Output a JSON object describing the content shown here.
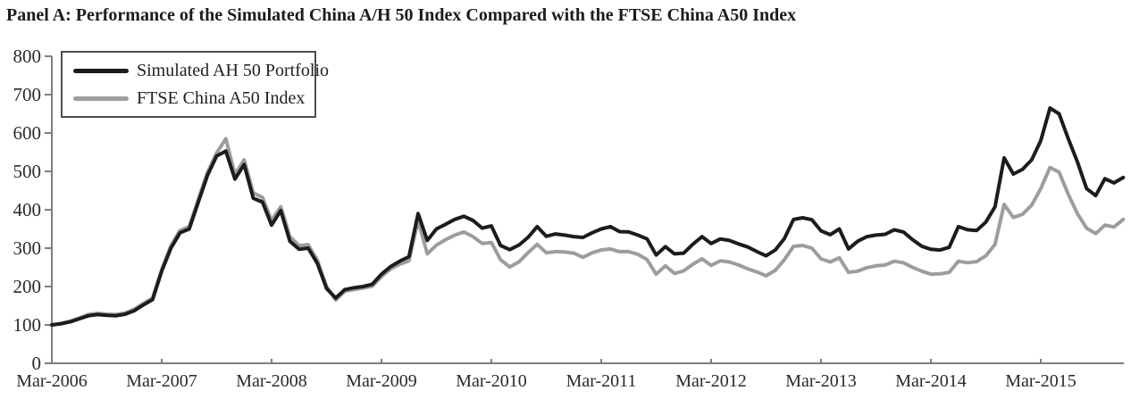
{
  "title": "Panel A: Performance of the Simulated China A/H 50 Index Compared with the FTSE China A50 Index",
  "colors": {
    "series_simulated": "#1c1c1c",
    "series_ftse": "#9d9d9d",
    "axis": "#7f7f7f",
    "text": "#2a2a2a",
    "legend_border": "#4d4d4d",
    "background": "#ffffff"
  },
  "chart_data": {
    "type": "line",
    "title": "Panel A: Performance of the Simulated China A/H 50 Index Compared with the FTSE China A50 Index",
    "x_start": "Mar-2006",
    "x_end": "Dec-2015",
    "x_frequency": "monthly",
    "x_tick_labels": [
      "Mar-2006",
      "Mar-2007",
      "Mar-2008",
      "Mar-2009",
      "Mar-2010",
      "Mar-2011",
      "Mar-2012",
      "Mar-2013",
      "Mar-2014",
      "Mar-2015"
    ],
    "y_ticks": [
      0,
      100,
      200,
      300,
      400,
      500,
      600,
      700,
      800
    ],
    "ylim": [
      0,
      800
    ],
    "base_value": 100,
    "grid": false,
    "legend_position": "top-left",
    "series": [
      {
        "name": "Simulated AH 50 Portfolio",
        "color": "#1c1c1c",
        "values": [
          100,
          103,
          108,
          116,
          124,
          127,
          125,
          124,
          128,
          137,
          152,
          166,
          240,
          300,
          340,
          350,
          420,
          490,
          540,
          553,
          480,
          518,
          430,
          420,
          360,
          398,
          318,
          297,
          300,
          260,
          195,
          170,
          192,
          197,
          200,
          206,
          232,
          252,
          266,
          278,
          390,
          320,
          350,
          362,
          375,
          383,
          372,
          352,
          358,
          307,
          296,
          308,
          328,
          356,
          331,
          337,
          334,
          330,
          328,
          340,
          350,
          356,
          343,
          342,
          334,
          324,
          282,
          304,
          285,
          287,
          310,
          330,
          312,
          324,
          320,
          311,
          303,
          291,
          280,
          295,
          325,
          375,
          379,
          374,
          345,
          335,
          350,
          298,
          318,
          330,
          334,
          336,
          348,
          342,
          322,
          305,
          297,
          295,
          302,
          356,
          348,
          346,
          368,
          408,
          535,
          493,
          505,
          530,
          580,
          665,
          650,
          585,
          525,
          455,
          437,
          481,
          470,
          484
        ]
      },
      {
        "name": "FTSE China A50 Index",
        "color": "#9d9d9d",
        "values": [
          100,
          104,
          110,
          118,
          127,
          130,
          128,
          127,
          131,
          141,
          156,
          170,
          244,
          306,
          346,
          356,
          428,
          498,
          548,
          585,
          492,
          530,
          444,
          432,
          372,
          408,
          330,
          306,
          309,
          268,
          200,
          165,
          188,
          192,
          196,
          201,
          226,
          246,
          258,
          267,
          372,
          285,
          308,
          322,
          334,
          342,
          330,
          312,
          315,
          270,
          251,
          264,
          288,
          310,
          288,
          291,
          290,
          287,
          276,
          288,
          295,
          298,
          291,
          291,
          284,
          270,
          232,
          254,
          234,
          241,
          258,
          272,
          255,
          267,
          264,
          256,
          246,
          238,
          228,
          242,
          270,
          305,
          307,
          300,
          272,
          264,
          275,
          237,
          240,
          249,
          254,
          256,
          266,
          262,
          250,
          240,
          232,
          233,
          237,
          266,
          262,
          265,
          280,
          310,
          414,
          380,
          388,
          412,
          455,
          510,
          498,
          440,
          390,
          352,
          338,
          360,
          355,
          375
        ]
      }
    ]
  }
}
